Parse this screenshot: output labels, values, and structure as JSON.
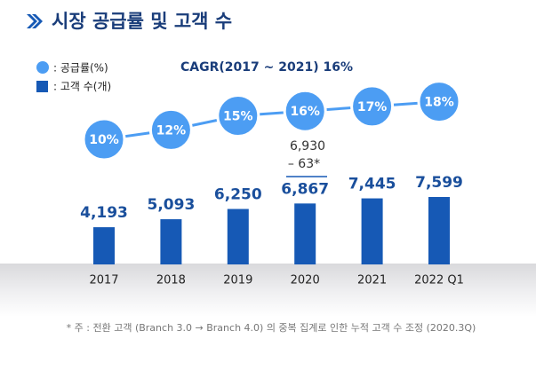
{
  "chart_data": {
    "type": "bar_line",
    "title": "시장 공급률 및 고객 수",
    "subtitle": "CAGR(2017 ~ 2021) 16%",
    "categories": [
      "2017",
      "2018",
      "2019",
      "2020",
      "2021",
      "2022 Q1"
    ],
    "series": [
      {
        "name": ": 고객 수(개)",
        "type": "bar",
        "color": "#1659b5",
        "values": [
          4193,
          5093,
          6250,
          6867,
          7445,
          7599
        ],
        "value_labels": [
          "4,193",
          "5,093",
          "6,250",
          "6,867",
          "7,445",
          "7,599"
        ]
      },
      {
        "name": ": 공급률(%)",
        "type": "line",
        "color": "#4c9df3",
        "values": [
          10,
          12,
          15,
          16,
          17,
          18
        ],
        "value_labels": [
          "10%",
          "12%",
          "15%",
          "16%",
          "17%",
          "18%"
        ]
      }
    ],
    "annotations": [
      "6,930",
      "–    63*"
    ],
    "footnote": "* 주 : 전환 고객 (Branch 3.0 → Branch 4.0) 의 중복  집계로 인한  누적  고객 수 조정 (2020.3Q)"
  }
}
